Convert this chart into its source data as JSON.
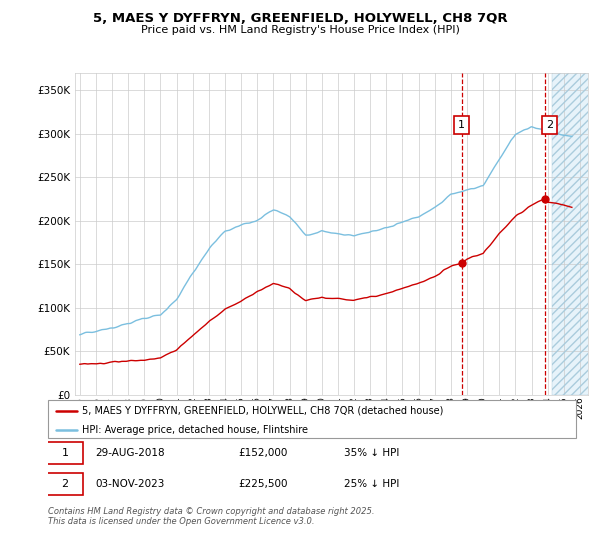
{
  "title_line1": "5, MAES Y DYFFRYN, GREENFIELD, HOLYWELL, CH8 7QR",
  "title_line2": "Price paid vs. HM Land Registry's House Price Index (HPI)",
  "ylim": [
    0,
    370000
  ],
  "xlim_start": 1994.7,
  "xlim_end": 2026.5,
  "hpi_color": "#7bbfdf",
  "price_color": "#cc0000",
  "marker1_date": 2018.66,
  "marker1_price": 152000,
  "marker2_date": 2023.84,
  "marker2_price": 225500,
  "legend_label1": "5, MAES Y DYFFRYN, GREENFIELD, HOLYWELL, CH8 7QR (detached house)",
  "legend_label2": "HPI: Average price, detached house, Flintshire",
  "note1_date": "29-AUG-2018",
  "note1_price": "£152,000",
  "note1_text": "35% ↓ HPI",
  "note2_date": "03-NOV-2023",
  "note2_price": "£225,500",
  "note2_text": "25% ↓ HPI",
  "copyright": "Contains HM Land Registry data © Crown copyright and database right 2025.\nThis data is licensed under the Open Government Licence v3.0.",
  "background_color": "#ffffff",
  "grid_color": "#cccccc",
  "future_shade_start": 2024.25
}
